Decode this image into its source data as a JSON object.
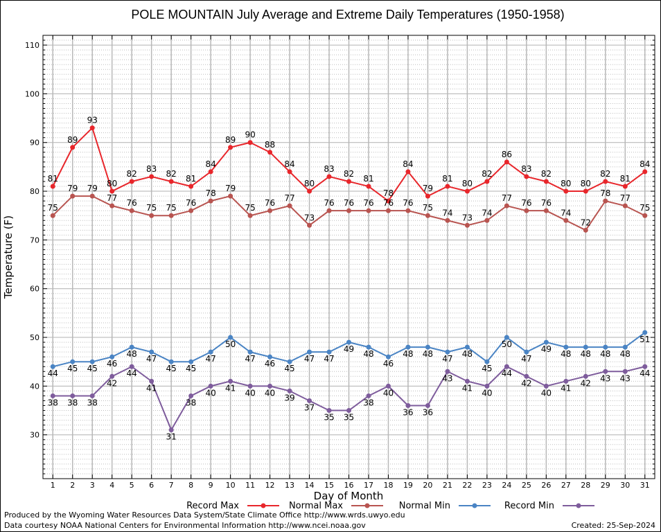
{
  "chart_data": {
    "type": "line",
    "title": "POLE MOUNTAIN July Average and Extreme Daily Temperatures (1950-1958)",
    "xlabel": "Day of Month",
    "ylabel": "Temperature (F)",
    "xlim": [
      0.5,
      31.5
    ],
    "ylim": [
      21,
      112
    ],
    "yticks": [
      30,
      40,
      50,
      60,
      70,
      80,
      90,
      100,
      110
    ],
    "grid": true,
    "legend_position": "bottom",
    "categories": [
      1,
      2,
      3,
      4,
      5,
      6,
      7,
      8,
      9,
      10,
      11,
      12,
      13,
      14,
      15,
      16,
      17,
      18,
      19,
      20,
      21,
      22,
      23,
      24,
      25,
      26,
      27,
      28,
      29,
      30,
      31
    ],
    "series": [
      {
        "name": "Record Max",
        "color": "#e8262b",
        "values": [
          81,
          89,
          93,
          80,
          82,
          83,
          82,
          81,
          84,
          89,
          90,
          88,
          84,
          80,
          83,
          82,
          81,
          78,
          84,
          79,
          81,
          80,
          82,
          86,
          83,
          82,
          80,
          80,
          82,
          81,
          84
        ]
      },
      {
        "name": "Normal Max",
        "color": "#b85450",
        "values": [
          75,
          79,
          79,
          77,
          76,
          75,
          75,
          76,
          78,
          79,
          75,
          76,
          77,
          73,
          76,
          76,
          76,
          76,
          76,
          75,
          74,
          73,
          74,
          77,
          76,
          76,
          74,
          72,
          78,
          77,
          75
        ]
      },
      {
        "name": "Normal Min",
        "color": "#4a84c4",
        "values": [
          44,
          45,
          45,
          46,
          48,
          47,
          45,
          45,
          47,
          50,
          47,
          46,
          45,
          47,
          47,
          49,
          48,
          46,
          48,
          48,
          47,
          48,
          45,
          50,
          47,
          49,
          48,
          48,
          48,
          48,
          51
        ]
      },
      {
        "name": "Record Min",
        "color": "#7e5c9c",
        "values": [
          38,
          38,
          38,
          42,
          44,
          41,
          31,
          38,
          40,
          41,
          40,
          40,
          39,
          37,
          35,
          35,
          38,
          40,
          36,
          36,
          43,
          41,
          40,
          44,
          42,
          40,
          41,
          42,
          43,
          43,
          44
        ]
      }
    ]
  },
  "footer": {
    "produced_by": "Produced by the Wyoming Water Resources Data System/State Climate Office http://www.wrds.uwyo.edu",
    "courtesy": "Data courtesy NOAA National Centers for Environmental Information http://www.ncei.noaa.gov",
    "created": "Created:  25-Sep-2024"
  }
}
